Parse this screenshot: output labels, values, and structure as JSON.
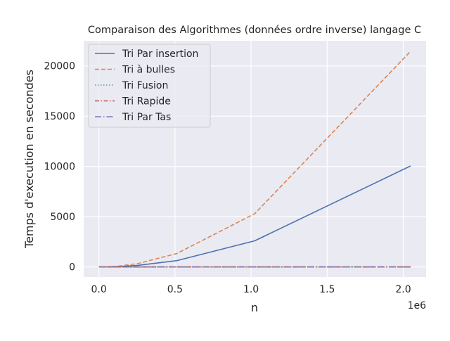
{
  "chart_data": {
    "type": "line",
    "title": "Comparaison des Algorithmes (données ordre inverse) langage C",
    "xlabel": "n",
    "ylabel": "Temps d'execution en secondes",
    "x_offset_label": "1e6",
    "x_ticks": [
      0,
      500000,
      1000000,
      1500000,
      2000000
    ],
    "x_tick_labels": [
      "0.0",
      "0.5",
      "1.0",
      "1.5",
      "2.0"
    ],
    "y_ticks": [
      0,
      5000,
      10000,
      15000,
      20000
    ],
    "y_tick_labels": [
      "0",
      "5000",
      "10000",
      "15000",
      "20000"
    ],
    "xlim": [
      -100000,
      2150000
    ],
    "ylim": [
      -1000,
      22500
    ],
    "grid": true,
    "legend_position": "top-left",
    "x": [
      1000,
      2000,
      4000,
      8000,
      16000,
      32000,
      64000,
      128000,
      256000,
      512000,
      1024000,
      2048000
    ],
    "series": [
      {
        "name": "Tri Par insertion",
        "color": "#4c72b0",
        "dash": "solid",
        "values": [
          0.0024,
          0.0096,
          0.038,
          0.15,
          0.61,
          2.4,
          9.8,
          39,
          157,
          630,
          2600,
          10050
        ]
      },
      {
        "name": "Tri à bulles",
        "color": "#dd8452",
        "dash": "dashed",
        "values": [
          0.0051,
          0.02,
          0.082,
          0.33,
          1.3,
          5.2,
          21,
          84,
          335,
          1340,
          5300,
          21450
        ]
      },
      {
        "name": "Tri Fusion",
        "color": "#55a868",
        "dash": "dotted",
        "values": [
          0.0002,
          0.0004,
          0.0008,
          0.0017,
          0.0035,
          0.007,
          0.015,
          0.031,
          0.064,
          0.13,
          0.27,
          0.56
        ]
      },
      {
        "name": "Tri Rapide",
        "color": "#c44e52",
        "dash": "dashdot",
        "values": [
          0.0001,
          0.0002,
          0.0004,
          0.0009,
          0.0019,
          0.004,
          0.008,
          0.017,
          0.035,
          0.073,
          0.15,
          0.31
        ]
      },
      {
        "name": "Tri Par Tas",
        "color": "#8172b3",
        "dash": "longdashdot",
        "values": [
          0.0002,
          0.0004,
          0.0009,
          0.0019,
          0.004,
          0.0085,
          0.018,
          0.038,
          0.08,
          0.17,
          0.36,
          0.76
        ]
      }
    ]
  }
}
